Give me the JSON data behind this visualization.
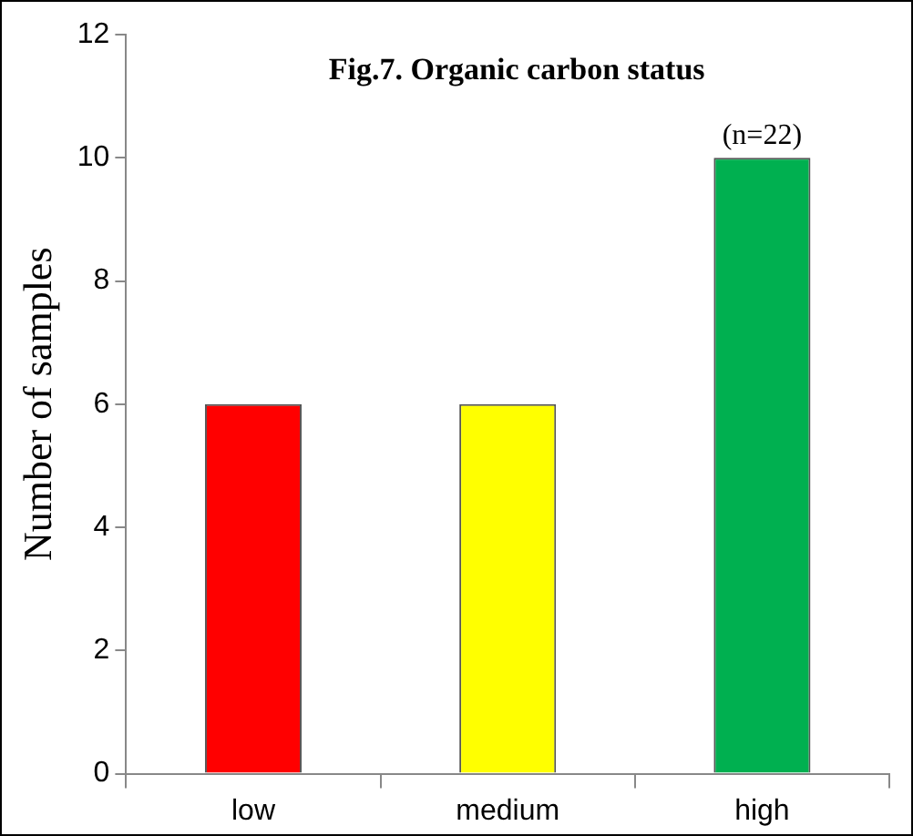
{
  "chart_data": {
    "type": "bar",
    "title": "Fig.7. Organic carbon status",
    "annotations": [
      "(n=22)"
    ],
    "ylabel": "Number of samples",
    "categories": [
      "low",
      "medium",
      "high"
    ],
    "values": [
      6,
      6,
      10
    ],
    "colors": [
      "#ff0000",
      "#ffff00",
      "#00b050"
    ],
    "ylim": [
      0,
      12
    ],
    "yticks": [
      0,
      2,
      4,
      6,
      8,
      10,
      12
    ],
    "grid": false,
    "legend": false
  }
}
